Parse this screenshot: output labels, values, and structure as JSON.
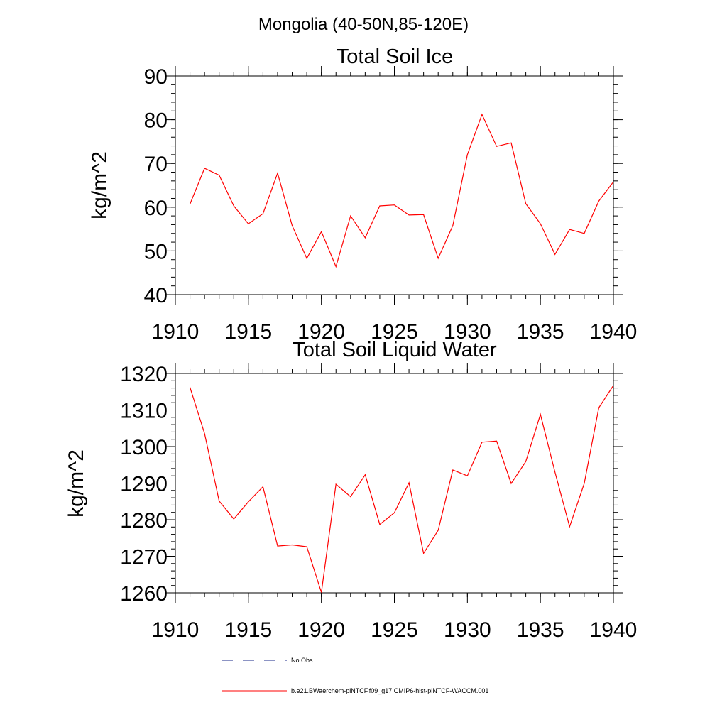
{
  "figure": {
    "suptitle": "Mongolia (40-50N,85-120E)"
  },
  "chart_data": [
    {
      "type": "line",
      "title": "Total Soil Ice",
      "xlabel": "",
      "ylabel": "kg/m^2",
      "xlim": [
        1910,
        1940
      ],
      "ylim": [
        40,
        90
      ],
      "xticks": [
        1910,
        1915,
        1920,
        1925,
        1930,
        1935,
        1940
      ],
      "yticks": [
        40,
        50,
        60,
        70,
        80,
        90
      ],
      "grid": false,
      "x": [
        1911,
        1912,
        1913,
        1914,
        1915,
        1916,
        1917,
        1918,
        1919,
        1920,
        1921,
        1922,
        1923,
        1924,
        1925,
        1926,
        1927,
        1928,
        1929,
        1930,
        1931,
        1932,
        1933,
        1934,
        1935,
        1936,
        1937,
        1938,
        1939,
        1940
      ],
      "series": [
        {
          "name": "b.e21.BWaerchem-piNTCF.f09_g17.CMIP6-hist-piNTCF-WACCM.001",
          "color": "#ff0000",
          "values": [
            60.7,
            68.9,
            67.3,
            60.3,
            56.2,
            58.5,
            67.8,
            55.8,
            48.3,
            54.4,
            46.4,
            58.0,
            53.0,
            60.3,
            60.5,
            58.2,
            58.3,
            48.3,
            55.8,
            72.0,
            81.2,
            73.9,
            74.7,
            60.8,
            56.2,
            49.2,
            54.9,
            54.0,
            61.4,
            65.8
          ]
        }
      ]
    },
    {
      "type": "line",
      "title": "Total Soil Liquid Water",
      "xlabel": "",
      "ylabel": "kg/m^2",
      "xlim": [
        1910,
        1940
      ],
      "ylim": [
        1260,
        1320
      ],
      "xticks": [
        1910,
        1915,
        1920,
        1925,
        1930,
        1935,
        1940
      ],
      "yticks": [
        1260,
        1270,
        1280,
        1290,
        1300,
        1310,
        1320
      ],
      "grid": false,
      "x": [
        1911,
        1912,
        1913,
        1914,
        1915,
        1916,
        1917,
        1918,
        1919,
        1920,
        1921,
        1922,
        1923,
        1924,
        1925,
        1926,
        1927,
        1928,
        1929,
        1930,
        1931,
        1932,
        1933,
        1934,
        1935,
        1936,
        1937,
        1938,
        1939,
        1940
      ],
      "series": [
        {
          "name": "b.e21.BWaerchem-piNTCF.f09_g17.CMIP6-hist-piNTCF-WACCM.001",
          "color": "#ff0000",
          "values": [
            1316.2,
            1303.6,
            1285.1,
            1280.2,
            1284.9,
            1289.0,
            1272.8,
            1273.1,
            1272.6,
            1260.1,
            1289.7,
            1286.3,
            1292.3,
            1278.7,
            1281.9,
            1290.1,
            1270.8,
            1277.1,
            1293.6,
            1292.0,
            1301.2,
            1301.5,
            1289.9,
            1295.9,
            1308.8,
            1293.0,
            1278.1,
            1289.9,
            1310.6,
            1316.7
          ]
        }
      ]
    }
  ],
  "legend": {
    "placement": "bottom",
    "items": [
      {
        "label": "No Obs",
        "style": "dashed",
        "color": "#1a2a8a"
      },
      {
        "label": "b.e21.BWaerchem-piNTCF.f09_g17.CMIP6-hist-piNTCF-WACCM.001",
        "style": "solid",
        "color": "#ff0000"
      }
    ]
  }
}
